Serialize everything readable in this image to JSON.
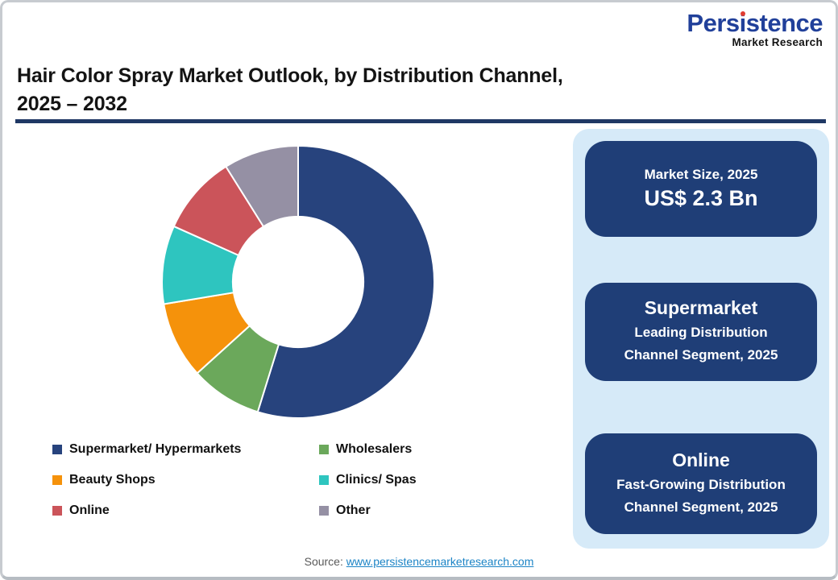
{
  "page": {
    "title_line1": "Hair Color Spray Market Outlook, by Distribution Channel,",
    "title_line2": "2025 – 2032"
  },
  "logo": {
    "brand_prefix": "Pers",
    "brand_dotted_letter": "i",
    "brand_suffix": "stence",
    "tagline": "Market Research",
    "brand_color": "#21409A",
    "dot_color": "#E03C31"
  },
  "chart_data": {
    "type": "pie",
    "donut": true,
    "inner_radius_ratio": 0.48,
    "start_angle_deg": 0,
    "direction": "clockwise",
    "title": "Hair Color Spray Market Outlook, by Distribution Channel, 2025 – 2032",
    "values_are_percent_estimates": true,
    "segments": [
      {
        "label": "Supermarket/ Hypermarkets",
        "value": 54.8,
        "color": "#27437D"
      },
      {
        "label": "Wholesalers",
        "value": 8.5,
        "color": "#6BA85B"
      },
      {
        "label": "Beauty Shops",
        "value": 9.1,
        "color": "#F5920B"
      },
      {
        "label": "Clinics/ Spas",
        "value": 9.3,
        "color": "#2EC5BF"
      },
      {
        "label": "Online",
        "value": 9.4,
        "color": "#CB545A"
      },
      {
        "label": "Other",
        "value": 8.9,
        "color": "#9590A4"
      }
    ],
    "legend_position": "bottom-left, two columns",
    "legend_column1": [
      "Supermarket/ Hypermarkets",
      "Beauty Shops",
      "Online"
    ],
    "legend_column2": [
      "Wholesalers",
      "Clinics/ Spas",
      "Other"
    ],
    "separator_color": "#ffffff"
  },
  "info_panel": {
    "background": "#D6EAF8",
    "card_background": "#1F3E77",
    "cards": [
      {
        "title": "Market Size, 2025",
        "value": "US$ 2.3 Bn"
      },
      {
        "title": "Supermarket",
        "subtitle_lines": [
          "Leading Distribution",
          "Channel Segment, 2025"
        ]
      },
      {
        "title": "Online",
        "subtitle_lines": [
          "Fast-Growing Distribution",
          "Channel Segment, 2025"
        ]
      }
    ]
  },
  "source": {
    "prefix": "Source:",
    "link_text": "www.persistencemarketresearch.com"
  },
  "accent_colors": {
    "title_rule": "#1F3864",
    "link": "#1C84C6",
    "frame_border": "#C7CBD0"
  }
}
